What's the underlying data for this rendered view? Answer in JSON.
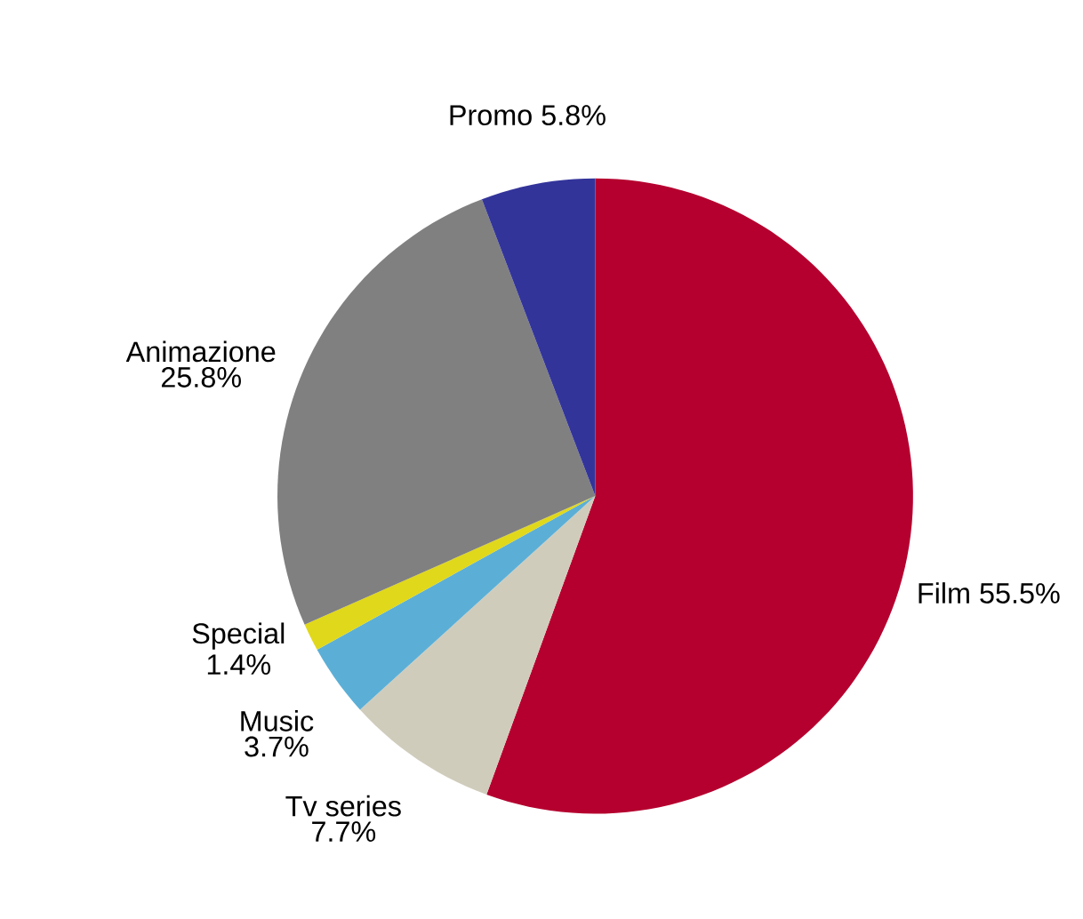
{
  "chart_data": {
    "type": "pie",
    "categories": [
      "Film",
      "Tv series",
      "Music",
      "Special",
      "Animazione",
      "Promo"
    ],
    "values": [
      55.5,
      7.7,
      3.7,
      1.4,
      25.8,
      5.8
    ],
    "value_labels": [
      "55.5%",
      "7.7%",
      "3.7%",
      "1.4%",
      "25.8%",
      "5.8%"
    ],
    "colors": [
      "#b5002f",
      "#d0ccbc",
      "#5bafd6",
      "#e0d81a",
      "#808080",
      "#33349a"
    ]
  }
}
